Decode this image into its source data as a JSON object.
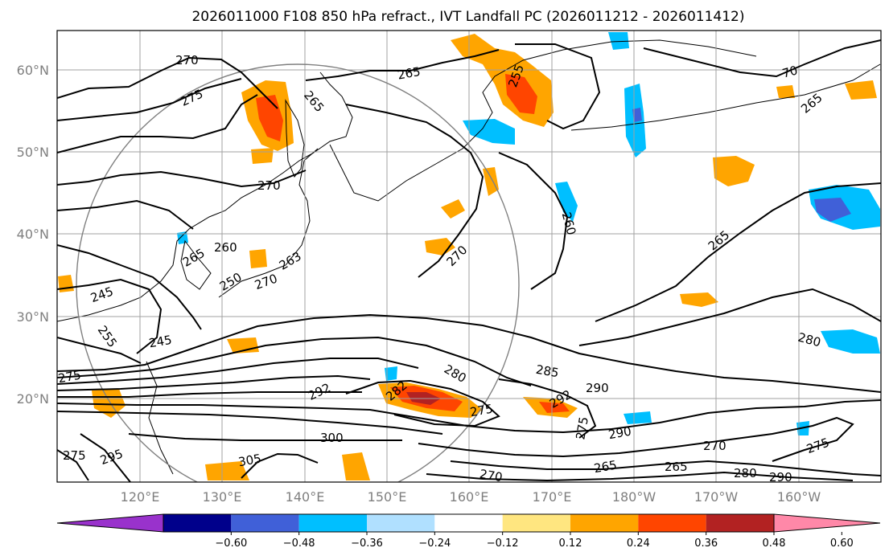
{
  "title": "2026011000 F108 850 hPa refract., IVT Landfall PC (2026011212 - 2026011412)",
  "lat_labels": [
    "60°N",
    "50°N",
    "40°N",
    "30°N",
    "20°N"
  ],
  "lon_labels": [
    "120°E",
    "130°E",
    "140°E",
    "150°E",
    "160°E",
    "170°E",
    "180°W",
    "170°W",
    "160°W"
  ],
  "colorbar": {
    "ticks": [
      "−0.60",
      "−0.48",
      "−0.36",
      "−0.24",
      "−0.12",
      "0.12",
      "0.24",
      "0.36",
      "0.48",
      "0.60"
    ],
    "colors": [
      "#9932cc",
      "#00008b",
      "#4060d8",
      "#00bfff",
      "#b0e0ff",
      "#ffffff",
      "#ffe680",
      "#ffa500",
      "#ff4500",
      "#b22222",
      "#ff88a8"
    ]
  },
  "contour_labels": [
    "270",
    "275",
    "265",
    "265",
    "255",
    "270",
    "260",
    "270",
    "265",
    "260",
    "265",
    "263",
    "270",
    "245",
    "250",
    "255",
    "245",
    "275",
    "282",
    "280",
    "285",
    "292",
    "290",
    "292",
    "275",
    "275",
    "290",
    "300",
    "305",
    "295",
    "275",
    "270",
    "265",
    "270",
    "280",
    "290",
    "275",
    "280",
    "265",
    "70",
    "265"
  ]
}
